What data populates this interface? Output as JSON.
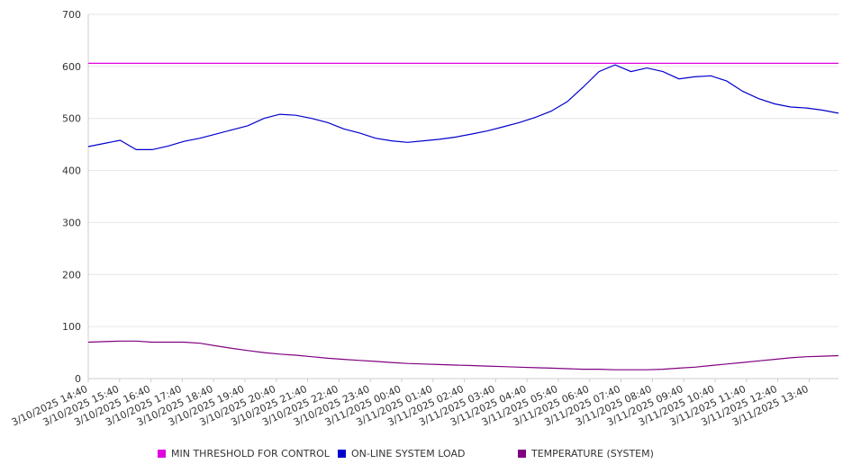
{
  "chart_data": {
    "type": "line",
    "title": "",
    "xlabel": "",
    "ylabel": "",
    "ylim": [
      0,
      700
    ],
    "yticks": [
      0,
      100,
      200,
      300,
      400,
      500,
      600,
      700
    ],
    "grid": true,
    "legend_position": "bottom",
    "x_tick_labels": [
      "3/10/2025 14:40",
      "3/10/2025 15:40",
      "3/10/2025 16:40",
      "3/10/2025 17:40",
      "3/10/2025 18:40",
      "3/10/2025 19:40",
      "3/10/2025 20:40",
      "3/10/2025 21:40",
      "3/10/2025 22:40",
      "3/10/2025 23:40",
      "3/11/2025 00:40",
      "3/11/2025 01:40",
      "3/11/2025 02:40",
      "3/11/2025 03:40",
      "3/11/2025 04:40",
      "3/11/2025 05:40",
      "3/11/2025 06:40",
      "3/11/2025 07:40",
      "3/11/2025 08:40",
      "3/11/2025 09:40",
      "3/11/2025 10:40",
      "3/11/2025 11:40",
      "3/11/2025 12:40",
      "3/11/2025 13:40"
    ],
    "x": [
      "3/10/2025 14:40",
      "3/10/2025 15:10",
      "3/10/2025 15:40",
      "3/10/2025 16:10",
      "3/10/2025 16:40",
      "3/10/2025 17:10",
      "3/10/2025 17:40",
      "3/10/2025 18:10",
      "3/10/2025 18:40",
      "3/10/2025 19:10",
      "3/10/2025 19:40",
      "3/10/2025 20:10",
      "3/10/2025 20:40",
      "3/10/2025 21:10",
      "3/10/2025 21:40",
      "3/10/2025 22:10",
      "3/10/2025 22:40",
      "3/10/2025 23:10",
      "3/10/2025 23:40",
      "3/11/2025 00:10",
      "3/11/2025 00:40",
      "3/11/2025 01:10",
      "3/11/2025 01:40",
      "3/11/2025 02:10",
      "3/11/2025 02:40",
      "3/11/2025 03:10",
      "3/11/2025 03:40",
      "3/11/2025 04:10",
      "3/11/2025 04:40",
      "3/11/2025 05:10",
      "3/11/2025 05:40",
      "3/11/2025 06:10",
      "3/11/2025 06:40",
      "3/11/2025 07:10",
      "3/11/2025 07:40",
      "3/11/2025 08:10",
      "3/11/2025 08:40",
      "3/11/2025 09:10",
      "3/11/2025 09:40",
      "3/11/2025 10:10",
      "3/11/2025 10:40",
      "3/11/2025 11:10",
      "3/11/2025 11:40",
      "3/11/2025 12:10",
      "3/11/2025 12:40",
      "3/11/2025 13:10",
      "3/11/2025 13:40",
      "3/11/2025 14:10"
    ],
    "series": [
      {
        "name": "MIN THRESHOLD FOR CONTROL",
        "color": "#e000e0",
        "values": [
          606,
          606,
          606,
          606,
          606,
          606,
          606,
          606,
          606,
          606,
          606,
          606,
          606,
          606,
          606,
          606,
          606,
          606,
          606,
          606,
          606,
          606,
          606,
          606,
          606,
          606,
          606,
          606,
          606,
          606,
          606,
          606,
          606,
          606,
          606,
          606,
          606,
          606,
          606,
          606,
          606,
          606,
          606,
          606,
          606,
          606,
          606,
          606
        ]
      },
      {
        "name": "ON-LINE SYSTEM LOAD",
        "color": "#0000cc",
        "values": [
          446,
          452,
          458,
          440,
          440,
          447,
          456,
          462,
          470,
          478,
          486,
          500,
          508,
          506,
          500,
          492,
          480,
          472,
          462,
          457,
          454,
          457,
          460,
          464,
          470,
          476,
          484,
          492,
          502,
          514,
          532,
          560,
          590,
          603,
          590,
          597,
          590,
          576,
          580,
          582,
          572,
          552,
          538,
          528,
          522,
          520,
          516,
          510
        ]
      },
      {
        "name": "TEMPERATURE (SYSTEM)",
        "color": "#800080",
        "values": [
          70,
          71,
          72,
          72,
          70,
          70,
          70,
          68,
          63,
          58,
          54,
          50,
          47,
          45,
          42,
          39,
          37,
          35,
          33,
          31,
          29,
          28,
          27,
          26,
          25,
          24,
          23,
          22,
          21,
          20,
          19,
          18,
          18,
          17,
          17,
          17,
          18,
          20,
          22,
          25,
          28,
          31,
          34,
          37,
          40,
          42,
          43,
          44
        ]
      }
    ]
  }
}
